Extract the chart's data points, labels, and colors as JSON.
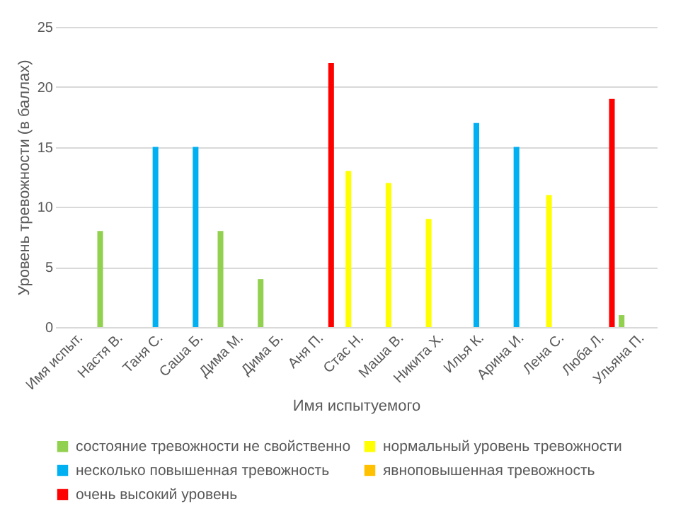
{
  "chart_data": {
    "type": "bar",
    "xlabel": "Имя испытуемого",
    "ylabel": "Уровень тревожности  (в баллах)",
    "categories": [
      "Имя испыт.",
      "Настя В.",
      "Таня С.",
      "Саша Б.",
      "Дима М.",
      "Дима Б.",
      "Аня П.",
      "Стас Н.",
      "Маша В.",
      "Никита Х.",
      "Илья К.",
      "Арина И.",
      "Лена С.",
      "Люба Л.",
      "Ульяна П."
    ],
    "series": [
      {
        "name": "состояние тревожности не свойственно",
        "color": "#92d050",
        "values": [
          0,
          8,
          null,
          null,
          8,
          4,
          null,
          null,
          null,
          null,
          null,
          null,
          null,
          null,
          1
        ]
      },
      {
        "name": "нормальный уровень тревожности",
        "color": "#ffff00",
        "values": [
          0,
          null,
          null,
          null,
          null,
          null,
          null,
          13,
          12,
          9,
          null,
          null,
          11,
          null,
          null
        ]
      },
      {
        "name": "несколько повышенная тревожность",
        "color": "#00b0f0",
        "values": [
          0,
          null,
          15,
          15,
          null,
          null,
          null,
          null,
          null,
          null,
          17,
          15,
          null,
          null,
          null
        ]
      },
      {
        "name": "явноповышенная тревожность",
        "color": "#ffc000",
        "values": [
          0,
          null,
          null,
          null,
          null,
          null,
          null,
          null,
          null,
          null,
          null,
          null,
          null,
          null,
          null
        ]
      },
      {
        "name": "очень высокий уровень",
        "color": "#ff0000",
        "values": [
          0,
          null,
          null,
          null,
          null,
          null,
          22,
          null,
          null,
          null,
          null,
          null,
          null,
          19,
          null
        ]
      }
    ],
    "ylim": [
      0,
      25
    ],
    "yticks": [
      0,
      5,
      10,
      15,
      20,
      25
    ],
    "grid": true,
    "legend": "bottom"
  }
}
